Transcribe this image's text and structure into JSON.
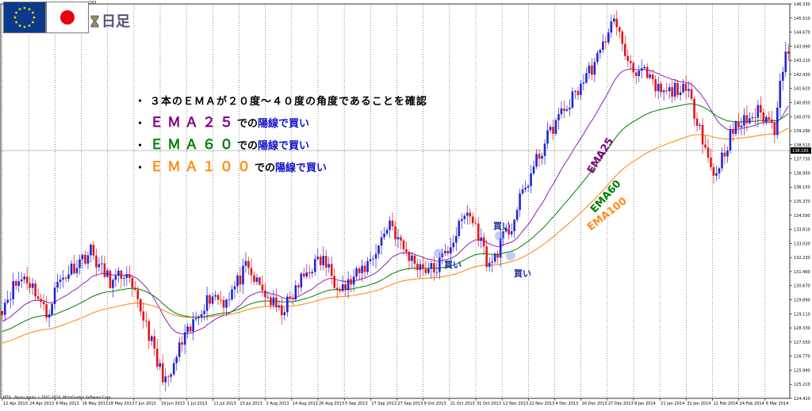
{
  "header": {
    "timeframe_label": "日足",
    "period_value": "183",
    "flags": [
      {
        "name": "eu-flag",
        "color": "#0b3a8c"
      },
      {
        "name": "japan-flag",
        "color": "#e60012"
      }
    ]
  },
  "annotations": {
    "main_note": "３本のＥＭＡが２０度〜４０度の角度であることを確認",
    "ema_notes": [
      {
        "name": "ＥＭＡ２５",
        "suffix": "での",
        "action": "陽線で買い",
        "color": "#800080"
      },
      {
        "name": "ＥＭＡ６０",
        "suffix": "での",
        "action": "陽線で買い",
        "color": "#008000"
      },
      {
        "name": "ＥＭＡ１００",
        "suffix": "での",
        "action": "陽線で買い",
        "color": "#ff8c1a"
      }
    ],
    "buy_labels": [
      "買い",
      "買い",
      "買い"
    ],
    "line_labels": [
      "EMA25",
      "EMA60",
      "EMA100"
    ]
  },
  "footer": {
    "note": "MT4 - Alpari Japan, c 2001-2014, MetaQuotes Software Corp."
  },
  "chart_data": {
    "type": "candlestick",
    "price_axis": {
      "min": 124.41,
      "max": 146.33,
      "ticks": [
        "146.330",
        "145.510",
        "144.670",
        "143.990",
        "143.210",
        "142.430",
        "141.620",
        "140.850",
        "140.070",
        "139.290",
        "138.510",
        "137.730",
        "136.950",
        "136.150",
        "135.370",
        "134.590",
        "133.810",
        "133.030",
        "132.230",
        "131.460",
        "130.670",
        "129.890",
        "129.110",
        "128.330",
        "127.550",
        "126.770",
        "125.990",
        "125.210",
        "124.410"
      ],
      "current_price": "138.183"
    },
    "date_ticks": [
      "12 Apr 2013",
      "24 Apr 2013",
      "6 May 2013",
      "16 May 2013",
      "28 May 2013",
      "7 Jun 2013",
      "19 Jun 2013",
      "1 Jul 2013",
      "11 Jul 2013",
      "23 Jul 2013",
      "2 Aug 2013",
      "14 Aug 2013",
      "26 Aug 2013",
      "5 Sep 2013",
      "17 Sep 2013",
      "27 Sep 2013",
      "9 Oct 2013",
      "21 Oct 2013",
      "31 Oct 2013",
      "12 Nov 2013",
      "22 Nov 2013",
      "4 Dec 2013",
      "16 Dec 2013",
      "27 Dec 2013",
      "9 Jan 2014",
      "21 Jan 2014",
      "31 Jan 2014",
      "12 Feb 2014",
      "24 Feb 2014",
      "6 Mar 2014"
    ],
    "up_color": "#2323d6",
    "down_color": "#e3141b",
    "ema_colors": {
      "EMA25": "#9b30c4",
      "EMA60": "#108c10",
      "EMA100": "#ff8c1a"
    },
    "close_path": [
      [
        0,
        129.5
      ],
      [
        4,
        130.6
      ],
      [
        8,
        131.2
      ],
      [
        12,
        130.4
      ],
      [
        16,
        129.0
      ],
      [
        20,
        130.8
      ],
      [
        26,
        131.8
      ],
      [
        32,
        132.6
      ],
      [
        36,
        131.5
      ],
      [
        40,
        130.8
      ],
      [
        44,
        131.4
      ],
      [
        48,
        130.0
      ],
      [
        52,
        128.6
      ],
      [
        56,
        126.3
      ],
      [
        60,
        125.2
      ],
      [
        64,
        127.2
      ],
      [
        68,
        128.2
      ],
      [
        72,
        129.5
      ],
      [
        76,
        130.2
      ],
      [
        80,
        129.8
      ],
      [
        84,
        130.6
      ],
      [
        88,
        131.6
      ],
      [
        92,
        130.8
      ],
      [
        96,
        130.0
      ],
      [
        100,
        129.2
      ],
      [
        104,
        129.8
      ],
      [
        108,
        131.0
      ],
      [
        112,
        131.8
      ],
      [
        116,
        132.1
      ],
      [
        120,
        131.0
      ],
      [
        124,
        130.6
      ],
      [
        128,
        131.2
      ],
      [
        132,
        131.9
      ],
      [
        136,
        132.9
      ],
      [
        140,
        134.3
      ],
      [
        144,
        132.9
      ],
      [
        148,
        132.1
      ],
      [
        152,
        131.7
      ],
      [
        156,
        131.5
      ],
      [
        160,
        132.4
      ],
      [
        164,
        133.6
      ],
      [
        168,
        134.8
      ],
      [
        172,
        133.6
      ],
      [
        174,
        132.6
      ],
      [
        176,
        131.7
      ],
      [
        180,
        133.0
      ],
      [
        184,
        134.0
      ],
      [
        188,
        135.8
      ],
      [
        192,
        137.2
      ],
      [
        196,
        138.6
      ],
      [
        200,
        139.8
      ],
      [
        204,
        140.6
      ],
      [
        208,
        141.6
      ],
      [
        212,
        142.6
      ],
      [
        216,
        143.5
      ],
      [
        219,
        145.0
      ],
      [
        222,
        145.4
      ],
      [
        224,
        143.8
      ],
      [
        228,
        142.8
      ],
      [
        232,
        142.4
      ],
      [
        236,
        141.6
      ],
      [
        240,
        141.3
      ],
      [
        244,
        141.7
      ],
      [
        248,
        141.2
      ],
      [
        252,
        139.6
      ],
      [
        255,
        137.7
      ],
      [
        257,
        136.8
      ],
      [
        260,
        137.8
      ],
      [
        263,
        139.0
      ],
      [
        266,
        139.6
      ],
      [
        270,
        140.0
      ],
      [
        273,
        140.3
      ],
      [
        276,
        140.0
      ],
      [
        279,
        139.4
      ],
      [
        281,
        142.4
      ],
      [
        283,
        143.4
      ]
    ]
  }
}
